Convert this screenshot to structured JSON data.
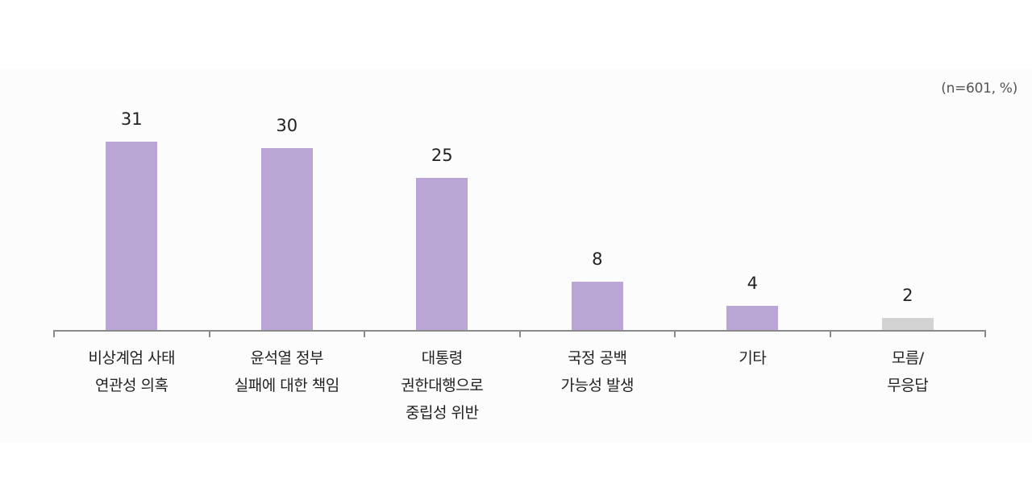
{
  "chart_data": {
    "type": "bar",
    "title": "",
    "note": "(n=601, %)",
    "xlabel": "",
    "ylabel": "",
    "ylim": [
      0,
      31
    ],
    "grid": false,
    "legend": null,
    "categories": [
      [
        "비상계엄 사태",
        "연관성 의혹"
      ],
      [
        "윤석열 정부",
        "실패에 대한 책임"
      ],
      [
        "대통령",
        "권한대행으로",
        "중립성 위반"
      ],
      [
        "국정 공백",
        "가능성 발생"
      ],
      [
        "기타"
      ],
      [
        "모름/",
        "무응답"
      ]
    ],
    "values": [
      31,
      30,
      25,
      8,
      4,
      2
    ],
    "colors": [
      "#b9a6d4",
      "#b9a6d4",
      "#b9a6d4",
      "#b9a6d4",
      "#b9a6d4",
      "#d3d3d3"
    ]
  },
  "colors": {
    "bar": "#b9a6d4",
    "bar_muted": "#d3d3d3",
    "axis": "#8a8a8a",
    "panel": "#fcfcfc"
  }
}
